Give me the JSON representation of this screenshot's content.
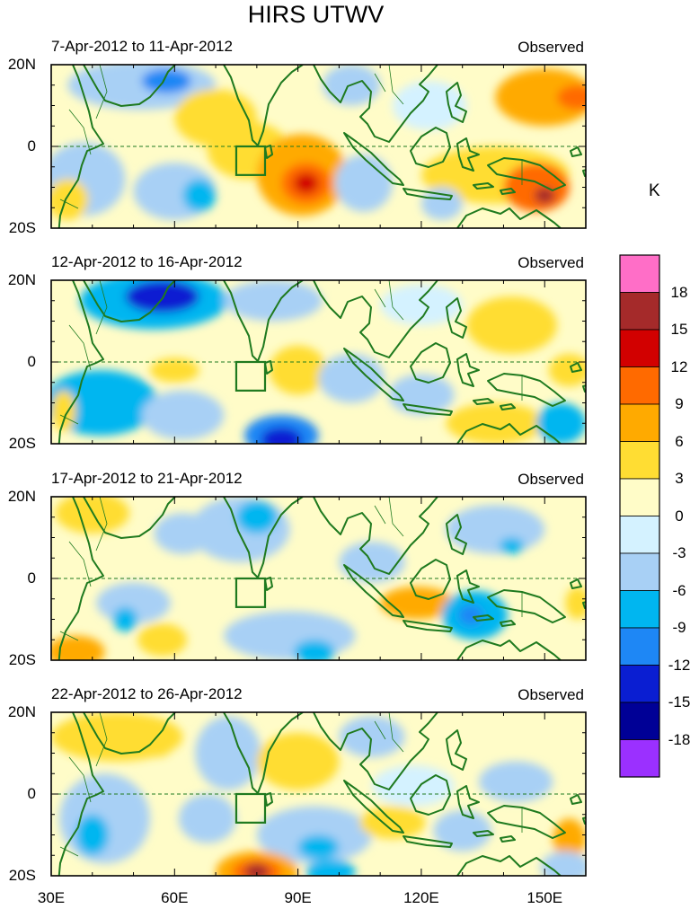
{
  "title": "HIRS UTWV",
  "unit": "K",
  "tag": "Observed",
  "panels": [
    {
      "date": "7-Apr-2012 to 11-Apr-2012",
      "blobs": [
        {
          "lon": 38,
          "lat": -8,
          "rx": 10,
          "ry": 9,
          "v": -4
        },
        {
          "lon": 52,
          "lat": 15,
          "rx": 18,
          "ry": 6,
          "v": -6
        },
        {
          "lon": 58,
          "lat": 16,
          "rx": 6,
          "ry": 3,
          "v": -12
        },
        {
          "lon": 60,
          "lat": -11,
          "rx": 10,
          "ry": 7,
          "v": -5
        },
        {
          "lon": 66,
          "lat": -12,
          "rx": 4,
          "ry": 4,
          "v": -8
        },
        {
          "lon": 70,
          "lat": 7,
          "rx": 10,
          "ry": 7,
          "v": 5
        },
        {
          "lon": 78,
          "lat": -1,
          "rx": 10,
          "ry": 7,
          "v": 4
        },
        {
          "lon": 91,
          "lat": -7,
          "rx": 11,
          "ry": 10,
          "v": 7
        },
        {
          "lon": 92,
          "lat": -9,
          "rx": 6,
          "ry": 5,
          "v": 10
        },
        {
          "lon": 92,
          "lat": -9,
          "rx": 3,
          "ry": 2.5,
          "v": 14
        },
        {
          "lon": 106,
          "lat": -9,
          "rx": 7,
          "ry": 7,
          "v": -4
        },
        {
          "lon": 103,
          "lat": 15,
          "rx": 7,
          "ry": 5,
          "v": -4
        },
        {
          "lon": 122,
          "lat": 10,
          "rx": 9,
          "ry": 6,
          "v": -3
        },
        {
          "lon": 138,
          "lat": -7,
          "rx": 18,
          "ry": 7,
          "v": 5
        },
        {
          "lon": 148,
          "lat": -10,
          "rx": 8,
          "ry": 6,
          "v": 9
        },
        {
          "lon": 150,
          "lat": -12,
          "rx": 2.5,
          "ry": 2,
          "v": 15
        },
        {
          "lon": 150,
          "lat": 12,
          "rx": 12,
          "ry": 7,
          "v": 6
        },
        {
          "lon": 158,
          "lat": 12,
          "rx": 5,
          "ry": 3,
          "v": 9
        },
        {
          "lon": 34,
          "lat": -13,
          "rx": 5,
          "ry": 5,
          "v": 4
        },
        {
          "lon": 125,
          "lat": -14,
          "rx": 5,
          "ry": 4,
          "v": -4
        }
      ]
    },
    {
      "date": "12-Apr-2012 to 16-Apr-2012",
      "blobs": [
        {
          "lon": 55,
          "lat": 15,
          "rx": 18,
          "ry": 7,
          "v": -8
        },
        {
          "lon": 57,
          "lat": 16,
          "rx": 9,
          "ry": 4,
          "v": -14
        },
        {
          "lon": 84,
          "lat": 15,
          "rx": 12,
          "ry": 5,
          "v": -5
        },
        {
          "lon": 42,
          "lat": -10,
          "rx": 14,
          "ry": 8,
          "v": -7
        },
        {
          "lon": 62,
          "lat": -13,
          "rx": 10,
          "ry": 6,
          "v": -5
        },
        {
          "lon": 86,
          "lat": -18,
          "rx": 9,
          "ry": 5,
          "v": -10
        },
        {
          "lon": 86,
          "lat": -19,
          "rx": 5,
          "ry": 3,
          "v": -14
        },
        {
          "lon": 60,
          "lat": -2,
          "rx": 6,
          "ry": 3,
          "v": 3
        },
        {
          "lon": 90,
          "lat": -2,
          "rx": 7,
          "ry": 6,
          "v": 5
        },
        {
          "lon": 103,
          "lat": -4,
          "rx": 8,
          "ry": 6,
          "v": -4
        },
        {
          "lon": 120,
          "lat": -8,
          "rx": 8,
          "ry": 5,
          "v": -4
        },
        {
          "lon": 142,
          "lat": 9,
          "rx": 11,
          "ry": 7,
          "v": 5
        },
        {
          "lon": 138,
          "lat": -15,
          "rx": 12,
          "ry": 5,
          "v": 4
        },
        {
          "lon": 154,
          "lat": -15,
          "rx": 6,
          "ry": 5,
          "v": -7
        },
        {
          "lon": 156,
          "lat": -2,
          "rx": 5,
          "ry": 4,
          "v": 3
        },
        {
          "lon": 33,
          "lat": -12,
          "rx": 3,
          "ry": 5,
          "v": 4
        },
        {
          "lon": 120,
          "lat": 14,
          "rx": 10,
          "ry": 5,
          "v": -3
        }
      ]
    },
    {
      "date": "17-Apr-2012 to 21-Apr-2012",
      "blobs": [
        {
          "lon": 40,
          "lat": 16,
          "rx": 9,
          "ry": 5,
          "v": 5
        },
        {
          "lon": 76,
          "lat": 12,
          "rx": 12,
          "ry": 8,
          "v": -6
        },
        {
          "lon": 80,
          "lat": 15,
          "rx": 5,
          "ry": 4,
          "v": -9
        },
        {
          "lon": 62,
          "lat": 11,
          "rx": 7,
          "ry": 5,
          "v": -4
        },
        {
          "lon": 50,
          "lat": -6,
          "rx": 9,
          "ry": 5,
          "v": -4
        },
        {
          "lon": 88,
          "lat": -14,
          "rx": 16,
          "ry": 6,
          "v": -5
        },
        {
          "lon": 94,
          "lat": -18,
          "rx": 5,
          "ry": 3,
          "v": -8
        },
        {
          "lon": 36,
          "lat": -18,
          "rx": 7,
          "ry": 4,
          "v": 6
        },
        {
          "lon": 57,
          "lat": -15,
          "rx": 6,
          "ry": 4,
          "v": 5
        },
        {
          "lon": 119,
          "lat": -6,
          "rx": 9,
          "ry": 4,
          "v": 7
        },
        {
          "lon": 133,
          "lat": -9,
          "rx": 8,
          "ry": 6,
          "v": -7
        },
        {
          "lon": 132,
          "lat": -9,
          "rx": 3,
          "ry": 2.5,
          "v": -11
        },
        {
          "lon": 138,
          "lat": 12,
          "rx": 12,
          "ry": 6,
          "v": -4
        },
        {
          "lon": 142,
          "lat": 8,
          "rx": 3,
          "ry": 2,
          "v": -8
        },
        {
          "lon": 108,
          "lat": 4,
          "rx": 8,
          "ry": 5,
          "v": -4
        },
        {
          "lon": 158,
          "lat": -6,
          "rx": 3,
          "ry": 4,
          "v": 4
        },
        {
          "lon": 48,
          "lat": -10,
          "rx": 3,
          "ry": 3,
          "v": -7
        }
      ]
    },
    {
      "date": "22-Apr-2012 to 26-Apr-2012",
      "blobs": [
        {
          "lon": 46,
          "lat": 14,
          "rx": 16,
          "ry": 6,
          "v": 4
        },
        {
          "lon": 56,
          "lat": 13,
          "rx": 4,
          "ry": 4,
          "v": 5
        },
        {
          "lon": 73,
          "lat": 10,
          "rx": 8,
          "ry": 9,
          "v": -5
        },
        {
          "lon": 90,
          "lat": 8,
          "rx": 10,
          "ry": 7,
          "v": 4
        },
        {
          "lon": 108,
          "lat": 14,
          "rx": 8,
          "ry": 5,
          "v": -5
        },
        {
          "lon": 43,
          "lat": -6,
          "rx": 11,
          "ry": 11,
          "v": -4
        },
        {
          "lon": 40,
          "lat": -10,
          "rx": 4,
          "ry": 5,
          "v": -7
        },
        {
          "lon": 68,
          "lat": -6,
          "rx": 7,
          "ry": 6,
          "v": -4
        },
        {
          "lon": 94,
          "lat": -10,
          "rx": 14,
          "ry": 7,
          "v": -5
        },
        {
          "lon": 95,
          "lat": -13,
          "rx": 5,
          "ry": 3,
          "v": -8
        },
        {
          "lon": 80,
          "lat": -19,
          "rx": 10,
          "ry": 5,
          "v": 6
        },
        {
          "lon": 80,
          "lat": -19,
          "rx": 6,
          "ry": 3,
          "v": 11
        },
        {
          "lon": 80,
          "lat": -19,
          "rx": 3,
          "ry": 2,
          "v": 16
        },
        {
          "lon": 113,
          "lat": -7,
          "rx": 8,
          "ry": 4,
          "v": 5
        },
        {
          "lon": 130,
          "lat": -9,
          "rx": 7,
          "ry": 5,
          "v": -6
        },
        {
          "lon": 118,
          "lat": 2,
          "rx": 10,
          "ry": 5,
          "v": -3
        },
        {
          "lon": 143,
          "lat": 3,
          "rx": 9,
          "ry": 5,
          "v": -4
        },
        {
          "lon": 156,
          "lat": -11,
          "rx": 4,
          "ry": 5,
          "v": 7
        },
        {
          "lon": 155,
          "lat": -18,
          "rx": 6,
          "ry": 4,
          "v": -6
        },
        {
          "lon": 98,
          "lat": -19,
          "rx": 6,
          "ry": 3,
          "v": -7
        }
      ]
    }
  ],
  "lat_ticks": [
    "20N",
    "0",
    "20S"
  ],
  "lon_ticks": [
    "30E",
    "60E",
    "90E",
    "120E",
    "150E"
  ],
  "colorbar": {
    "labels": [
      "18",
      "15",
      "12",
      "9",
      "6",
      "3",
      "0",
      "-3",
      "-6",
      "-9",
      "-12",
      "-15",
      "-18"
    ],
    "colors": [
      "#ff6ec7",
      "#a52a2a",
      "#d20000",
      "#ff6a00",
      "#ffaa00",
      "#ffdd33",
      "#fffcc8",
      "#d4f2ff",
      "#a8d0f5",
      "#00b6f0",
      "#1e87f5",
      "#0a1ed2",
      "#000096",
      "#9b30ff"
    ]
  },
  "box": {
    "lon": [
      75,
      82
    ],
    "lat": [
      -7,
      0
    ]
  }
}
